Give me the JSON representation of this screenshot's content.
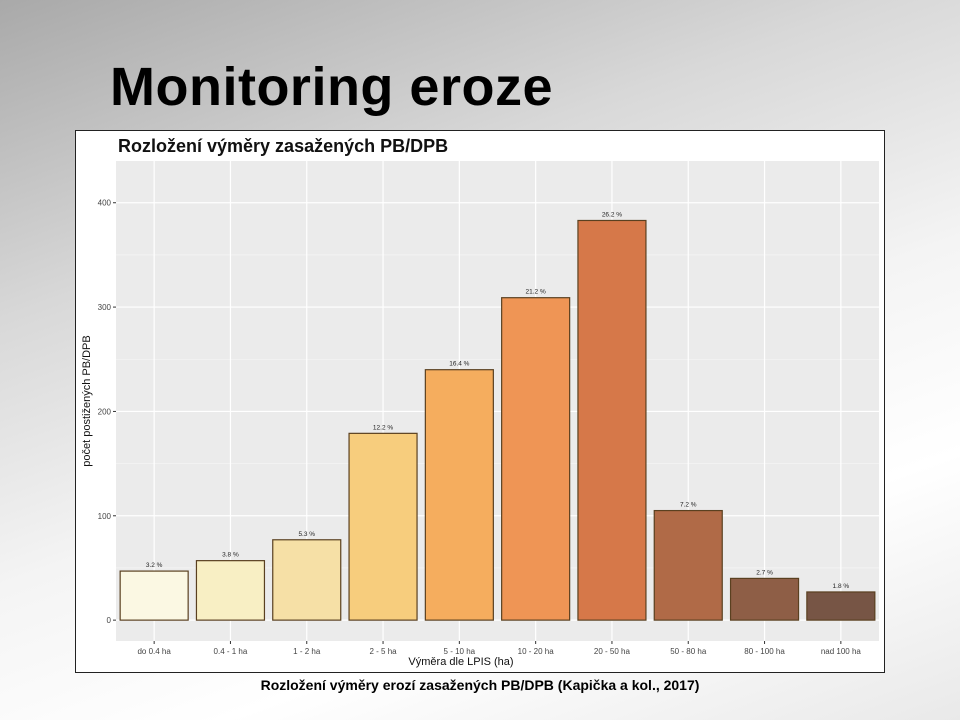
{
  "slide": {
    "title": "Monitoring eroze",
    "caption": "Rozložení výměry erozí zasažených PB/DPB (Kapička a kol., 2017)"
  },
  "chart_data": {
    "type": "bar",
    "title": "Rozložení výměry zasažených PB/DPB",
    "xlabel": "Výměra dle LPIS (ha)",
    "ylabel": "počet postižených PB/DPB",
    "ylim": [
      -20,
      440
    ],
    "yticks": [
      "0",
      "100",
      "200",
      "300",
      "400"
    ],
    "grid": true,
    "categories": [
      "do 0.4 ha",
      "0.4 - 1 ha",
      "1 - 2 ha",
      "2 - 5 ha",
      "5 - 10 ha",
      "10 - 20 ha",
      "20 - 50 ha",
      "50 - 80 ha",
      "80 - 100 ha",
      "nad 100 ha"
    ],
    "values": [
      47,
      57,
      77,
      179,
      240,
      309,
      383,
      105,
      40,
      27
    ],
    "labels": [
      "3.2 %",
      "3.8 %",
      "5.3 %",
      "12.2 %",
      "16.4 %",
      "21.2 %",
      "26.2 %",
      "7.2 %",
      "2.7 %",
      "1.8 %"
    ],
    "colors": [
      "#fbf8e3",
      "#f8efc4",
      "#f6e0a6",
      "#f7cd7d",
      "#f5ad5e",
      "#ef9555",
      "#d67849",
      "#b06a47",
      "#8e5e46",
      "#775545"
    ]
  }
}
